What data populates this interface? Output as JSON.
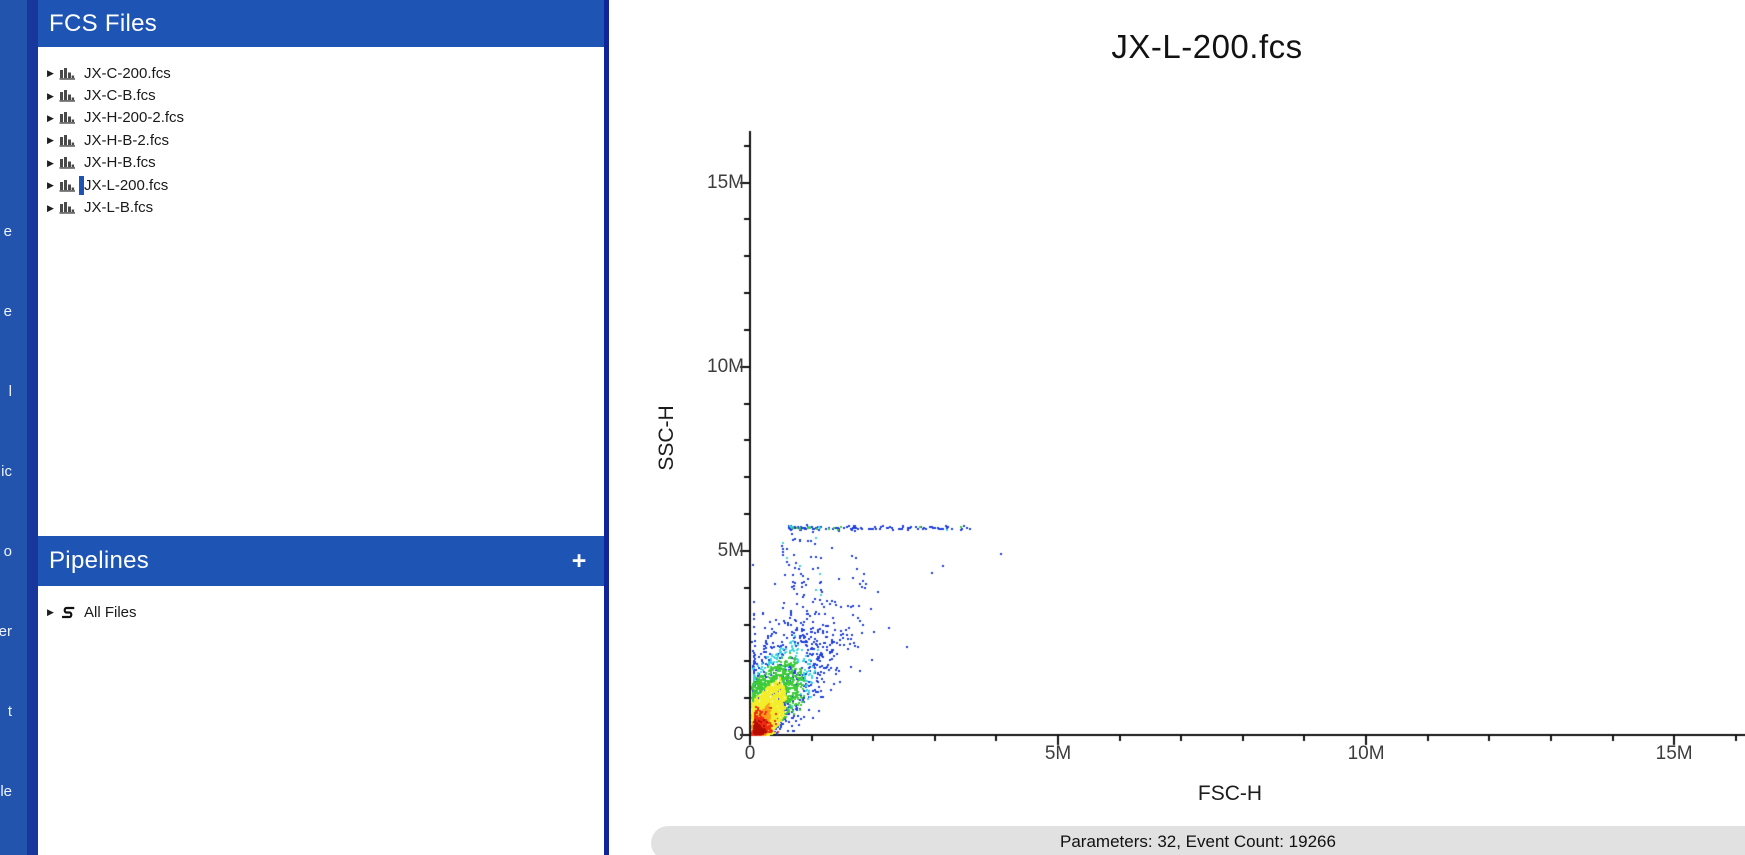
{
  "accent": {
    "header_blue": "#1e55b4",
    "rail_blue": "#2254ae",
    "divider_blue": "#17379d",
    "border_blue": "#10259a",
    "selection_blue": "#1d53b2"
  },
  "sidebar": {
    "fragments": [
      "e",
      "e",
      "l",
      "ic",
      "o",
      "er",
      "t",
      "le"
    ]
  },
  "fcs_files": {
    "header": "FCS Files",
    "items": [
      {
        "name": "JX-C-200.fcs",
        "selected": false
      },
      {
        "name": "JX-C-B.fcs",
        "selected": false
      },
      {
        "name": "JX-H-200-2.fcs",
        "selected": false
      },
      {
        "name": "JX-H-B-2.fcs",
        "selected": false
      },
      {
        "name": "JX-H-B.fcs",
        "selected": false
      },
      {
        "name": "JX-L-200.fcs",
        "selected": true
      },
      {
        "name": "JX-L-B.fcs",
        "selected": false
      }
    ]
  },
  "pipelines": {
    "header": "Pipelines",
    "add_button": "+",
    "items": [
      {
        "name": "All Files"
      }
    ]
  },
  "plot": {
    "title": "JX-L-200.fcs",
    "status": "Parameters: 32, Event Count: 19266"
  },
  "chart_data": {
    "type": "scatter",
    "subtype": "flow-cytometry-density-dot-plot",
    "title": "JX-L-200.fcs",
    "xlabel": "FSC-H",
    "ylabel": "SSC-H",
    "xlim": [
      0,
      16150000
    ],
    "ylim": [
      0,
      16400000
    ],
    "grid": false,
    "x_ticks": [
      {
        "value": 0,
        "label": "0"
      },
      {
        "value": 5000000,
        "label": "5M"
      },
      {
        "value": 10000000,
        "label": "10M"
      },
      {
        "value": 15000000,
        "label": "15M"
      }
    ],
    "y_ticks": [
      {
        "value": 0,
        "label": "0"
      },
      {
        "value": 5000000,
        "label": "5M"
      },
      {
        "value": 10000000,
        "label": "10M"
      },
      {
        "value": 15000000,
        "label": "15M"
      }
    ],
    "minor_tick_interval": 1000000,
    "event_count": 19266,
    "parameter_count": 32,
    "palette": {
      "blue": "#1d3fe0",
      "cyan": "#38d5e0",
      "green": "#3ecb3a",
      "yellow": "#f3ee2c",
      "orange": "#fb9e1a",
      "red": "#ee2b12",
      "darkred": "#b50b00"
    },
    "draw_order": [
      "blue",
      "cyan",
      "green",
      "yellow",
      "orange",
      "red",
      "darkred"
    ],
    "populations": [
      {
        "name": "main-debris-teardrop",
        "kind": "teardrop",
        "n": 2600,
        "origin_M": [
          0.08,
          0.0
        ],
        "y_sigma_M": 1.05,
        "x_slope": 0.26,
        "x_jitter_base_M": 0.1,
        "x_jitter_slope": 0.13,
        "color_thresholds": {
          "red": 0.45,
          "orange": 0.8,
          "yellow": 1.5,
          "green": 2.15,
          "cyan": 2.5
        }
      },
      {
        "name": "blue-halo",
        "kind": "halo",
        "n": 560,
        "y_sigma_M": 1.85,
        "x_base_M": 0.14,
        "x_slope": 0.3,
        "x_jitter_base_M": 0.2,
        "x_jitter_slope": 0.16,
        "y_max_M": 5.45,
        "color": "blue"
      },
      {
        "name": "mid-column-scatter",
        "kind": "column",
        "n": 95,
        "x_base_M": 0.5,
        "x_sigma_M": 0.42,
        "y_range_M": [
          2.2,
          5.55
        ],
        "color": "blue",
        "speckle": "cyan",
        "speckle_p": 0.08
      },
      {
        "name": "saturation-band",
        "kind": "band",
        "n": 150,
        "y_M": 5.62,
        "y_sigma_M": 0.03,
        "x_start_M": 0.62,
        "x_span_M": 2.93,
        "green_run_M": [
          1.15,
          1.5
        ]
      },
      {
        "name": "red-core",
        "kind": "blob",
        "n": 430,
        "x0_M": 0.06,
        "xs_M": 0.11,
        "y0_M": 0.04,
        "ys_M": 0.24,
        "color": "red"
      },
      {
        "name": "darkred-core",
        "kind": "blob",
        "n": 260,
        "x0_M": 0.05,
        "xs_M": 0.075,
        "y0_M": 0.03,
        "ys_M": 0.13,
        "color": "darkred"
      }
    ]
  }
}
